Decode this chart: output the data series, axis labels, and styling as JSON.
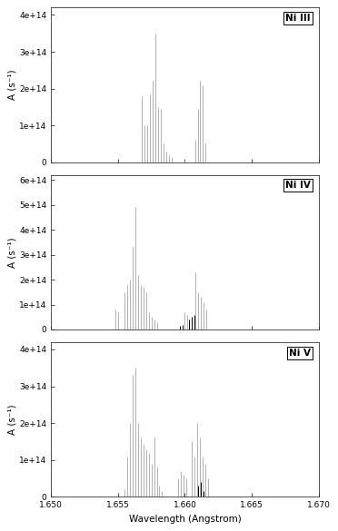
{
  "panels": [
    {
      "label": "Ni III",
      "ylim": [
        0,
        420000000000000.0
      ],
      "yticks": [
        0,
        100000000000000.0,
        200000000000000.0,
        300000000000000.0,
        400000000000000.0
      ],
      "ytick_labels": [
        "0",
        "1e+14",
        "2e+14",
        "3e+14",
        "4e+14"
      ],
      "gray_lines": [
        [
          1.6568,
          180000000000000.0
        ],
        [
          1.657,
          100000000000000.0
        ],
        [
          1.6572,
          100000000000000.0
        ],
        [
          1.6574,
          185000000000000.0
        ],
        [
          1.6576,
          220000000000000.0
        ],
        [
          1.6578,
          350000000000000.0
        ],
        [
          1.658,
          150000000000000.0
        ],
        [
          1.6582,
          145000000000000.0
        ],
        [
          1.6584,
          50000000000000.0
        ],
        [
          1.6586,
          30000000000000.0
        ],
        [
          1.6588,
          20000000000000.0
        ],
        [
          1.659,
          15000000000000.0
        ],
        [
          1.66,
          5000000000000.0
        ],
        [
          1.6608,
          60000000000000.0
        ],
        [
          1.661,
          145000000000000.0
        ],
        [
          1.6611,
          220000000000000.0
        ],
        [
          1.6613,
          210000000000000.0
        ],
        [
          1.6615,
          50000000000000.0
        ]
      ],
      "black_lines": []
    },
    {
      "label": "Ni IV",
      "ylim": [
        0,
        620000000000000.0
      ],
      "yticks": [
        0,
        100000000000000.0,
        200000000000000.0,
        300000000000000.0,
        400000000000000.0,
        500000000000000.0,
        600000000000000.0
      ],
      "ytick_labels": [
        "0",
        "1e+14",
        "2e+14",
        "3e+14",
        "4e+14",
        "5e+14",
        "6e+14"
      ],
      "gray_lines": [
        [
          1.6548,
          80000000000000.0
        ],
        [
          1.655,
          70000000000000.0
        ],
        [
          1.6555,
          150000000000000.0
        ],
        [
          1.6557,
          180000000000000.0
        ],
        [
          1.6559,
          200000000000000.0
        ],
        [
          1.6561,
          330000000000000.0
        ],
        [
          1.6563,
          490000000000000.0
        ],
        [
          1.6565,
          220000000000000.0
        ],
        [
          1.6567,
          180000000000000.0
        ],
        [
          1.6569,
          170000000000000.0
        ],
        [
          1.6571,
          150000000000000.0
        ],
        [
          1.6573,
          70000000000000.0
        ],
        [
          1.6575,
          50000000000000.0
        ],
        [
          1.6577,
          40000000000000.0
        ],
        [
          1.6579,
          30000000000000.0
        ],
        [
          1.66,
          70000000000000.0
        ],
        [
          1.6602,
          60000000000000.0
        ],
        [
          1.6608,
          230000000000000.0
        ],
        [
          1.661,
          150000000000000.0
        ],
        [
          1.6612,
          130000000000000.0
        ],
        [
          1.6614,
          110000000000000.0
        ],
        [
          1.6616,
          80000000000000.0
        ]
      ],
      "black_lines": [
        [
          1.6596,
          15000000000000.0
        ],
        [
          1.6598,
          20000000000000.0
        ],
        [
          1.6603,
          40000000000000.0
        ],
        [
          1.6605,
          50000000000000.0
        ],
        [
          1.6607,
          60000000000000.0
        ]
      ]
    },
    {
      "label": "Ni V",
      "ylim": [
        0,
        420000000000000.0
      ],
      "yticks": [
        0,
        100000000000000.0,
        200000000000000.0,
        300000000000000.0,
        400000000000000.0
      ],
      "ytick_labels": [
        "0",
        "1e+14",
        "2e+14",
        "3e+14",
        "4e+14"
      ],
      "gray_lines": [
        [
          1.6555,
          20000000000000.0
        ],
        [
          1.6557,
          110000000000000.0
        ],
        [
          1.6559,
          200000000000000.0
        ],
        [
          1.6561,
          330000000000000.0
        ],
        [
          1.6563,
          350000000000000.0
        ],
        [
          1.6565,
          200000000000000.0
        ],
        [
          1.6567,
          160000000000000.0
        ],
        [
          1.6569,
          140000000000000.0
        ],
        [
          1.6571,
          130000000000000.0
        ],
        [
          1.6573,
          120000000000000.0
        ],
        [
          1.6575,
          90000000000000.0
        ],
        [
          1.6577,
          160000000000000.0
        ],
        [
          1.6579,
          80000000000000.0
        ],
        [
          1.6581,
          30000000000000.0
        ],
        [
          1.6583,
          15000000000000.0
        ],
        [
          1.6595,
          50000000000000.0
        ],
        [
          1.6597,
          70000000000000.0
        ],
        [
          1.6599,
          60000000000000.0
        ],
        [
          1.6601,
          50000000000000.0
        ],
        [
          1.6605,
          150000000000000.0
        ],
        [
          1.6607,
          110000000000000.0
        ],
        [
          1.6609,
          200000000000000.0
        ],
        [
          1.6611,
          160000000000000.0
        ],
        [
          1.6613,
          110000000000000.0
        ],
        [
          1.6615,
          90000000000000.0
        ],
        [
          1.6617,
          50000000000000.0
        ]
      ],
      "black_lines": [
        [
          1.661,
          30000000000000.0
        ],
        [
          1.6612,
          40000000000000.0
        ],
        [
          1.6614,
          15000000000000.0
        ]
      ]
    }
  ],
  "xlim": [
    1.65,
    1.67
  ],
  "xticks": [
    1.65,
    1.655,
    1.66,
    1.665,
    1.67
  ],
  "xlabel": "Wavelength (Angstrom)",
  "ylabel": "A (s⁻¹)",
  "gray_color": "#b0b0b0",
  "black_color": "#000000",
  "line_width": 0.7,
  "bg_color": "#ffffff",
  "tick_label_size": 6.5,
  "label_fontsize": 7.5
}
